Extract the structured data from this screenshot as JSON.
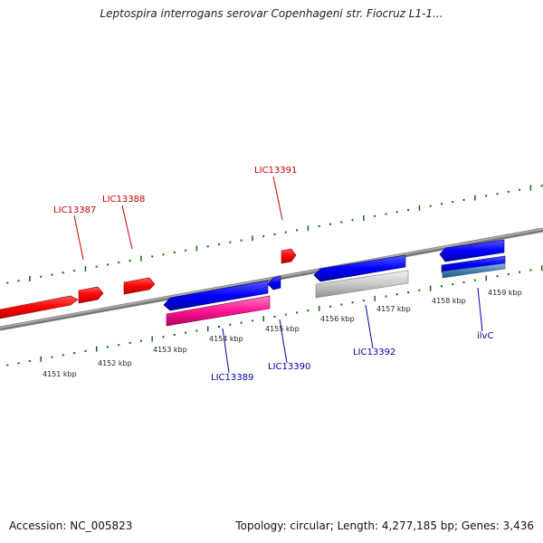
{
  "title": "Leptospira interrogans serovar Copenhageni str. Fiocruz L1-1...",
  "footer": {
    "accession": "Accession: NC_005823",
    "summary": "Topology: circular; Length: 4,277,185 bp; Genes: 3,436"
  },
  "colors": {
    "forward_gene": "#ff0000",
    "reverse_gene": "#0000ff",
    "reverse_gene_label": "#0000aa",
    "forward_gene_label": "#cc0000",
    "backbone": "#888888",
    "tick": "#116611",
    "rna_pink": "#ff1493",
    "pseudogene_gray": "#c0c0c0",
    "steel_blue": "#4682b4"
  },
  "ticks": [
    {
      "label": "4151 kbp"
    },
    {
      "label": "4152 kbp"
    },
    {
      "label": "4153 kbp"
    },
    {
      "label": "4154 kbp"
    },
    {
      "label": "4155 kbp"
    },
    {
      "label": "4156 kbp"
    },
    {
      "label": "4157 kbp"
    },
    {
      "label": "4158 kbp"
    },
    {
      "label": "4159 kbp"
    }
  ],
  "gene_labels": {
    "top": [
      "LIC13387",
      "LIC13388",
      "LIC13391"
    ],
    "bottom": [
      "LIC13389",
      "LIC13390",
      "LIC13392",
      "ilvC"
    ]
  }
}
